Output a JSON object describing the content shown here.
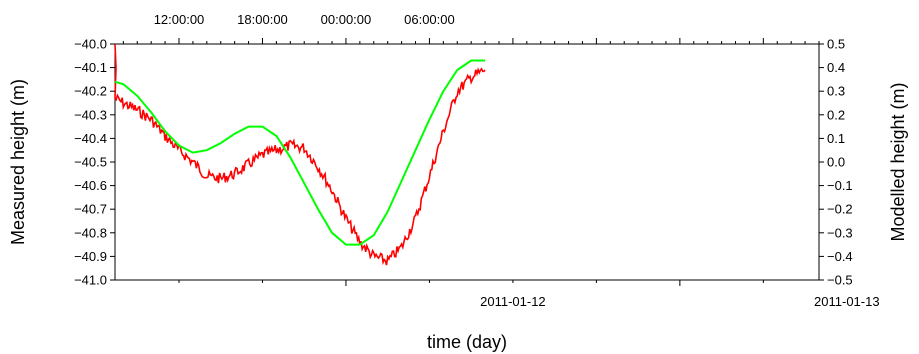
{
  "chart_data": {
    "type": "line",
    "xlabel": "time (day)",
    "ylabel_left": "Measured height (m)",
    "ylabel_right": "Modelled height (m)",
    "x_range": [
      "2011-01-11 07:24",
      "2011-01-13 10:00"
    ],
    "ylim_left": [
      -41.0,
      -40.0
    ],
    "ylim_right": [
      -0.5,
      0.5
    ],
    "bottom_ticks": [
      "2011-01-12",
      "2011-01-13"
    ],
    "top_ticks": [
      "12:00:00",
      "18:00:00",
      "00:00:00",
      "06:00:00"
    ],
    "left_ticks": [
      "-40.0",
      "-40.1",
      "-40.2",
      "-40.3",
      "-40.4",
      "-40.5",
      "-40.6",
      "-40.7",
      "-40.8",
      "-40.9",
      "-41.0"
    ],
    "right_ticks": [
      "0.5",
      "0.4",
      "0.3",
      "0.2",
      "0.1",
      "0.0",
      "-0.1",
      "-0.2",
      "-0.3",
      "-0.4",
      "-0.5"
    ],
    "grid": false,
    "legend": "none",
    "series": [
      {
        "axis": "left",
        "color": "#ff0000",
        "x": [
          "2011-01-11 07:24",
          "2011-01-11 08:00",
          "2011-01-11 09:00",
          "2011-01-11 10:00",
          "2011-01-11 11:00",
          "2011-01-11 12:00",
          "2011-01-11 13:00",
          "2011-01-11 14:00",
          "2011-01-11 15:00",
          "2011-01-11 16:00",
          "2011-01-11 17:00",
          "2011-01-11 18:00",
          "2011-01-11 19:00",
          "2011-01-11 20:00",
          "2011-01-11 21:00",
          "2011-01-11 22:00",
          "2011-01-11 23:00",
          "2011-01-12 00:00",
          "2011-01-12 01:00",
          "2011-01-12 02:00",
          "2011-01-12 03:00",
          "2011-01-12 04:00",
          "2011-01-12 05:00",
          "2011-01-12 06:00",
          "2011-01-12 07:00",
          "2011-01-12 08:00",
          "2011-01-12 09:00",
          "2011-01-12 10:00"
        ],
        "values": [
          -40.23,
          -40.25,
          -40.28,
          -40.32,
          -40.39,
          -40.45,
          -40.5,
          -40.56,
          -40.57,
          -40.55,
          -40.51,
          -40.47,
          -40.45,
          -40.43,
          -40.44,
          -40.52,
          -40.62,
          -40.74,
          -40.84,
          -40.9,
          -40.92,
          -40.86,
          -40.74,
          -40.56,
          -40.37,
          -40.2,
          -40.14,
          -40.11
        ]
      },
      {
        "axis": "right",
        "color": "#00ff00",
        "x": [
          "2011-01-11 07:24",
          "2011-01-11 08:00",
          "2011-01-11 09:00",
          "2011-01-11 10:00",
          "2011-01-11 11:00",
          "2011-01-11 12:00",
          "2011-01-11 13:00",
          "2011-01-11 14:00",
          "2011-01-11 15:00",
          "2011-01-11 16:00",
          "2011-01-11 17:00",
          "2011-01-11 18:00",
          "2011-01-11 19:00",
          "2011-01-11 20:00",
          "2011-01-11 21:00",
          "2011-01-11 22:00",
          "2011-01-11 23:00",
          "2011-01-12 00:00",
          "2011-01-12 01:00",
          "2011-01-12 02:00",
          "2011-01-12 03:00",
          "2011-01-12 04:00",
          "2011-01-12 05:00",
          "2011-01-12 06:00",
          "2011-01-12 07:00",
          "2011-01-12 08:00",
          "2011-01-12 09:00",
          "2011-01-12 10:00"
        ],
        "values": [
          0.34,
          0.33,
          0.28,
          0.21,
          0.13,
          0.07,
          0.04,
          0.05,
          0.08,
          0.12,
          0.15,
          0.15,
          0.11,
          0.02,
          -0.09,
          -0.2,
          -0.3,
          -0.35,
          -0.35,
          -0.31,
          -0.21,
          -0.08,
          0.05,
          0.18,
          0.3,
          0.39,
          0.43,
          0.43
        ]
      }
    ]
  }
}
